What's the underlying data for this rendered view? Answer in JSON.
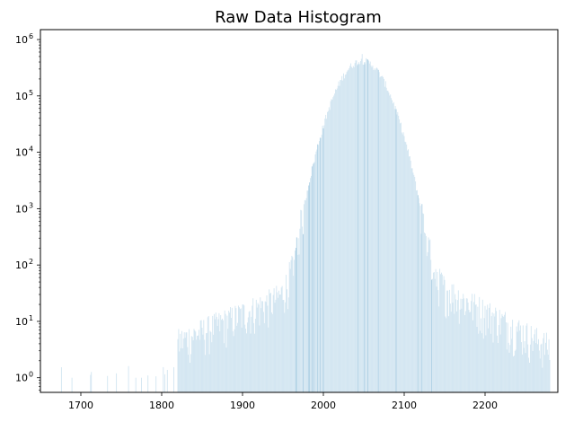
{
  "chart_data": {
    "type": "bar",
    "title": "Raw Data Histogram",
    "xlabel": "",
    "ylabel": "",
    "yscale": "log",
    "xlim": [
      1650,
      2290
    ],
    "ylim": [
      0.55,
      1500000
    ],
    "grid": false,
    "legend": "none",
    "bar_color": "#d2e5f1",
    "bar_edge_color": "#a9cde3",
    "x_ticks": [
      1700,
      1800,
      1900,
      2000,
      2100,
      2200
    ],
    "x_tick_labels": [
      "1700",
      "1800",
      "1900",
      "2000",
      "2100",
      "2200"
    ],
    "y_ticks": [
      1,
      10,
      100,
      1000,
      10000,
      100000,
      1000000
    ],
    "y_tick_labels": [
      {
        "base": "10",
        "exp": "0"
      },
      {
        "base": "10",
        "exp": "1"
      },
      {
        "base": "10",
        "exp": "2"
      },
      {
        "base": "10",
        "exp": "3"
      },
      {
        "base": "10",
        "exp": "4"
      },
      {
        "base": "10",
        "exp": "5"
      },
      {
        "base": "10",
        "exp": "6"
      }
    ],
    "distribution": {
      "bin_start": 1670,
      "bin_end": 2285,
      "bin_width": 1,
      "peak_x": 2048,
      "peak_count": 420000,
      "spike_x": 2048,
      "spike_count": 650000,
      "core_sigma": 20.8,
      "tail_left_start_x": 1820,
      "tail_right_end_x": 2280,
      "tail_level_at_1900": 25,
      "tail_level_at_1830": 5,
      "tail_level_at_2200": 15,
      "tail_level_at_2260": 5,
      "sparse_left_count": 1,
      "sparse_right_count": 1
    }
  }
}
